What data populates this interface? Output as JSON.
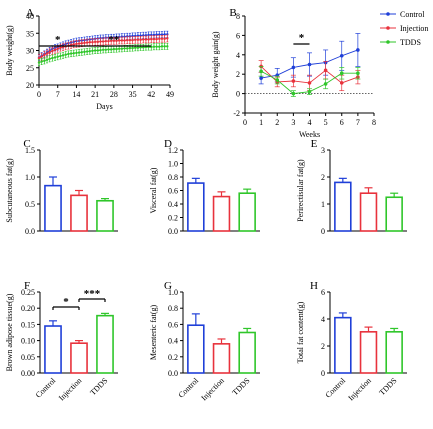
{
  "colors": {
    "Control": "#1f3fd8",
    "Injection": "#e8323c",
    "TDDS": "#2fc62a",
    "axis": "#000000",
    "dotted": "#333333"
  },
  "chart_data": [
    {
      "panel": "A",
      "type": "line",
      "xlabel": "Days",
      "ylabel": "Body weight(g)",
      "xlim": [
        0,
        49
      ],
      "ylim": [
        20,
        40
      ],
      "xticks": [
        "0",
        "7",
        "14",
        "21",
        "28",
        "35",
        "42",
        "49"
      ],
      "yticks": [
        "20",
        "25",
        "30",
        "35",
        "40"
      ],
      "x": [
        0,
        1,
        2,
        3,
        4,
        5,
        6,
        7,
        8,
        9,
        10,
        11,
        12,
        13,
        14,
        15,
        16,
        17,
        18,
        19,
        20,
        21,
        22,
        23,
        24,
        25,
        26,
        27,
        28,
        29,
        30,
        31,
        32,
        33,
        34,
        35,
        36,
        37,
        38,
        39,
        40,
        41,
        42,
        43,
        44,
        45,
        46,
        47,
        48
      ],
      "series": [
        {
          "name": "Control",
          "values": [
            28.0,
            28.5,
            29.0,
            29.5,
            30.0,
            30.5,
            30.8,
            31.0,
            31.3,
            31.6,
            31.9,
            32.1,
            32.3,
            32.5,
            32.7,
            32.8,
            32.9,
            33.0,
            33.1,
            33.2,
            33.3,
            33.4,
            33.5,
            33.6,
            33.6,
            33.7,
            33.7,
            33.8,
            33.8,
            33.9,
            33.9,
            34.0,
            34.0,
            34.1,
            34.1,
            34.2,
            34.2,
            34.3,
            34.3,
            34.4,
            34.4,
            34.5,
            34.5,
            34.5,
            34.6,
            34.6,
            34.6,
            34.7,
            34.7
          ],
          "err": 0.9
        },
        {
          "name": "Injection",
          "values": [
            27.8,
            28.2,
            28.7,
            29.1,
            29.5,
            29.9,
            30.2,
            30.5,
            30.8,
            31.0,
            31.2,
            31.4,
            31.6,
            31.8,
            31.9,
            32.0,
            32.1,
            32.2,
            32.3,
            32.4,
            32.4,
            32.5,
            32.5,
            32.6,
            32.6,
            32.7,
            32.7,
            32.8,
            32.8,
            32.8,
            32.9,
            32.9,
            32.9,
            33.0,
            33.0,
            33.0,
            33.1,
            33.1,
            33.1,
            33.2,
            33.2,
            33.2,
            33.3,
            33.3,
            33.3,
            33.4,
            33.4,
            33.4,
            33.5
          ],
          "err": 1.0
        },
        {
          "name": "TDDS",
          "values": [
            26.5,
            26.8,
            27.0,
            27.3,
            27.6,
            27.8,
            28.0,
            28.2,
            28.4,
            28.6,
            28.8,
            29.0,
            29.1,
            29.2,
            29.3,
            29.4,
            29.5,
            29.6,
            29.7,
            29.8,
            29.9,
            30.0,
            30.0,
            30.1,
            30.2,
            30.2,
            30.3,
            30.3,
            30.4,
            30.4,
            30.5,
            30.5,
            30.6,
            30.6,
            30.7,
            30.7,
            30.8,
            30.8,
            30.9,
            30.9,
            31.0,
            31.0,
            31.0,
            31.1,
            31.1,
            31.1,
            31.2,
            31.2,
            31.2
          ],
          "err": 0.9
        }
      ],
      "annotations": [
        {
          "text": "*",
          "from": 0,
          "to": 14
        },
        {
          "text": "**",
          "from": 14,
          "to": 42
        }
      ]
    },
    {
      "panel": "B",
      "type": "line",
      "xlabel": "Weeks",
      "ylabel": "Body weight gain(g)",
      "xlim": [
        0,
        8
      ],
      "ylim": [
        -2,
        8
      ],
      "xticks": [
        "0",
        "1",
        "2",
        "3",
        "4",
        "5",
        "6",
        "7",
        "8"
      ],
      "yticks": [
        "-2",
        "0",
        "2",
        "4",
        "6",
        "8"
      ],
      "x": [
        1,
        2,
        3,
        4,
        5,
        6,
        7
      ],
      "series": [
        {
          "name": "Control",
          "values": [
            1.6,
            1.9,
            2.7,
            3.0,
            3.2,
            3.9,
            4.5
          ],
          "err": [
            0.6,
            0.7,
            1.0,
            1.2,
            1.3,
            1.5,
            1.7
          ]
        },
        {
          "name": "Injection",
          "values": [
            2.8,
            1.2,
            1.3,
            1.1,
            2.4,
            1.1,
            1.7
          ],
          "err": [
            0.6,
            0.5,
            0.6,
            0.8,
            0.9,
            0.8,
            0.7
          ]
        },
        {
          "name": "TDDS",
          "values": [
            2.3,
            1.4,
            0.0,
            0.2,
            1.0,
            2.1,
            2.1
          ],
          "err": [
            0.5,
            0.4,
            0.3,
            0.3,
            0.5,
            0.6,
            0.6
          ]
        }
      ],
      "legend": {
        "position": "top-right",
        "items": [
          "Control",
          "Injection",
          "TDDS"
        ]
      },
      "annotations": [
        {
          "text": "*",
          "from": 3,
          "to": 4
        }
      ]
    },
    {
      "panel": "C",
      "type": "bar",
      "ylabel": "Subcutaneous fat(g)",
      "categories": [
        "Control",
        "Injection",
        "TDDS"
      ],
      "values": [
        0.84,
        0.66,
        0.56
      ],
      "err": [
        0.16,
        0.09,
        0.04
      ],
      "ylim": [
        0,
        1.5
      ],
      "yticks": [
        "0.0",
        "0.5",
        "1.0",
        "1.5"
      ]
    },
    {
      "panel": "D",
      "type": "bar",
      "ylabel": "Visceral fat(g)",
      "categories": [
        "Control",
        "Injection",
        "TDDS"
      ],
      "values": [
        0.71,
        0.51,
        0.56
      ],
      "err": [
        0.07,
        0.07,
        0.06
      ],
      "ylim": [
        0,
        1.2
      ],
      "yticks": [
        "0.0",
        "0.2",
        "0.4",
        "0.6",
        "0.8",
        "1.0",
        "1.2"
      ]
    },
    {
      "panel": "E",
      "type": "bar",
      "ylabel": "Perirectisular fat(g)",
      "categories": [
        "Control",
        "Injection",
        "TDDS"
      ],
      "values": [
        1.8,
        1.4,
        1.25
      ],
      "err": [
        0.15,
        0.2,
        0.15
      ],
      "ylim": [
        0,
        3
      ],
      "yticks": [
        "0",
        "1",
        "2",
        "3"
      ]
    },
    {
      "panel": "F",
      "type": "bar",
      "ylabel": "Brown adipose tissue(g)",
      "categories": [
        "Control",
        "Injection",
        "TDDS"
      ],
      "values": [
        0.145,
        0.092,
        0.177
      ],
      "err": [
        0.016,
        0.008,
        0.007
      ],
      "ylim": [
        0,
        0.25
      ],
      "yticks": [
        "0.00",
        "0.05",
        "0.10",
        "0.15",
        "0.20",
        "0.25"
      ],
      "annotations": [
        {
          "text": "*",
          "from": 0,
          "to": 1
        },
        {
          "text": "***",
          "from": 1,
          "to": 2
        }
      ]
    },
    {
      "panel": "G",
      "type": "bar",
      "ylabel": "Mesenteric fat(g)",
      "categories": [
        "Control",
        "Injection",
        "TDDS"
      ],
      "values": [
        0.59,
        0.36,
        0.5
      ],
      "err": [
        0.14,
        0.06,
        0.05
      ],
      "ylim": [
        0,
        1.0
      ],
      "yticks": [
        "0.0",
        "0.2",
        "0.4",
        "0.6",
        "0.8",
        "1.0"
      ]
    },
    {
      "panel": "H",
      "type": "bar",
      "ylabel": "Total fat content(g)",
      "categories": [
        "Control",
        "Injection",
        "TDDS"
      ],
      "values": [
        4.1,
        3.05,
        3.05
      ],
      "err": [
        0.35,
        0.35,
        0.25
      ],
      "ylim": [
        0,
        6
      ],
      "yticks": [
        "0",
        "2",
        "4",
        "6"
      ]
    }
  ]
}
